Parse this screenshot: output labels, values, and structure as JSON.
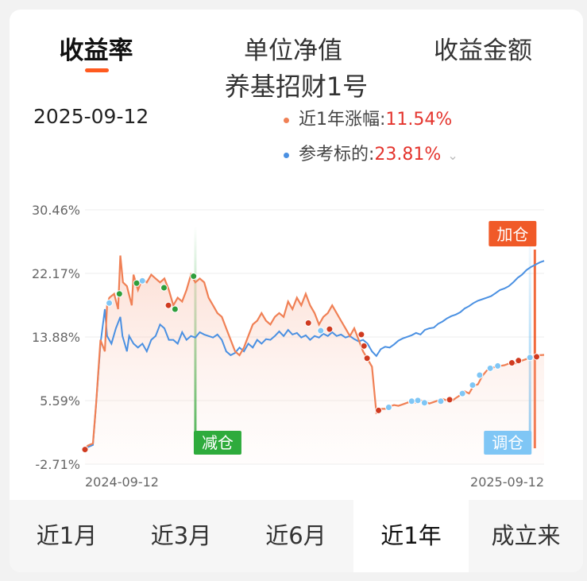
{
  "tabs": [
    "收益率",
    "单位净值",
    "收益金额"
  ],
  "active_tab": 0,
  "fund_name": "养基招财1号",
  "date": "2025-09-12",
  "legend": [
    {
      "label": "近1年涨幅:",
      "value": "11.54%",
      "color": "#f08055"
    },
    {
      "label": "参考标的:",
      "value": "23.81%",
      "color": "#4a90e2"
    }
  ],
  "periods": [
    "近1月",
    "近3月",
    "近6月",
    "近1年",
    "成立来"
  ],
  "active_period": 3,
  "chart_data": {
    "type": "line",
    "y_ticks": [
      "30.46%",
      "22.17%",
      "13.88%",
      "5.59%",
      "-2.71%"
    ],
    "ylim": [
      -2.71,
      30.46
    ],
    "x_ticks": [
      "2024-09-12",
      "2025-09-12"
    ],
    "series": [
      {
        "name": "近1年涨幅",
        "color": "#f08055",
        "points": [
          [
            0,
            -0.8
          ],
          [
            0.6,
            -0.3
          ],
          [
            1.8,
            0
          ],
          [
            2.5,
            5
          ],
          [
            3.5,
            13.5
          ],
          [
            4.5,
            12
          ],
          [
            5,
            18
          ],
          [
            5.5,
            19
          ],
          [
            6.6,
            19.5
          ],
          [
            7.5,
            17.5
          ],
          [
            8,
            24.5
          ],
          [
            8.6,
            21
          ],
          [
            9.5,
            20.5
          ],
          [
            10.6,
            18
          ],
          [
            11,
            22
          ],
          [
            12,
            20
          ],
          [
            13,
            21.5
          ],
          [
            14,
            21
          ],
          [
            15,
            22
          ],
          [
            16,
            21.5
          ],
          [
            17,
            21
          ],
          [
            18,
            21.5
          ],
          [
            19,
            20
          ],
          [
            20,
            18
          ],
          [
            21,
            19
          ],
          [
            22,
            18.5
          ],
          [
            23,
            20
          ],
          [
            24,
            22
          ],
          [
            25,
            21
          ],
          [
            26,
            21.5
          ],
          [
            27,
            21
          ],
          [
            28,
            19
          ],
          [
            29,
            18
          ],
          [
            30,
            17
          ],
          [
            31,
            16.5
          ],
          [
            32,
            15
          ],
          [
            33,
            13.5
          ],
          [
            34,
            12
          ],
          [
            35,
            11.5
          ],
          [
            36,
            12.5
          ],
          [
            37,
            14
          ],
          [
            38,
            15.5
          ],
          [
            39,
            16
          ],
          [
            40,
            17
          ],
          [
            41,
            16
          ],
          [
            42,
            15.5
          ],
          [
            43,
            16.5
          ],
          [
            44,
            17
          ],
          [
            45,
            16.5
          ],
          [
            46,
            18.5
          ],
          [
            47,
            17.5
          ],
          [
            48,
            19
          ],
          [
            49,
            18
          ],
          [
            50,
            19.5
          ],
          [
            51,
            18
          ],
          [
            52,
            17
          ],
          [
            53,
            15.5
          ],
          [
            54,
            16.5
          ],
          [
            55,
            17
          ],
          [
            56,
            18
          ],
          [
            57,
            17
          ],
          [
            58,
            16
          ],
          [
            59,
            15
          ],
          [
            60,
            14
          ],
          [
            61,
            15
          ],
          [
            62,
            13.5
          ],
          [
            63,
            12
          ],
          [
            64,
            11
          ],
          [
            65,
            10
          ],
          [
            66,
            4
          ],
          [
            67,
            4.5
          ],
          [
            68,
            4.5
          ],
          [
            69,
            4.8
          ],
          [
            70,
            5
          ],
          [
            71,
            4.9
          ],
          [
            72,
            5.1
          ],
          [
            73,
            5.3
          ],
          [
            74,
            5.5
          ],
          [
            75,
            5.3
          ],
          [
            76,
            5.6
          ],
          [
            77,
            5.5
          ],
          [
            78,
            5.2
          ],
          [
            79,
            5.4
          ],
          [
            80,
            5.6
          ],
          [
            81,
            5.8
          ],
          [
            82,
            5.6
          ],
          [
            83,
            5.5
          ],
          [
            84,
            5.9
          ],
          [
            85,
            6.3
          ],
          [
            86,
            6.8
          ],
          [
            87,
            6.5
          ],
          [
            88,
            7.5
          ],
          [
            89,
            7.7
          ],
          [
            90,
            8.8
          ],
          [
            91,
            9.5
          ],
          [
            92,
            9.8
          ],
          [
            93,
            10
          ],
          [
            94,
            10.1
          ],
          [
            95,
            10.2
          ],
          [
            96,
            10.4
          ],
          [
            97,
            10.3
          ],
          [
            98,
            10.6
          ],
          [
            99,
            10.8
          ],
          [
            100,
            11
          ],
          [
            101,
            11.3
          ],
          [
            102,
            11.4
          ],
          [
            103,
            11.5
          ],
          [
            104,
            11.54
          ]
        ]
      },
      {
        "name": "参考标的",
        "color": "#4a90e2",
        "points": [
          [
            0,
            -0.8
          ],
          [
            0.6,
            -0.5
          ],
          [
            1.8,
            -0.2
          ],
          [
            2.5,
            5
          ],
          [
            3.5,
            13
          ],
          [
            4.5,
            17.5
          ],
          [
            5,
            14
          ],
          [
            6,
            13
          ],
          [
            7,
            15
          ],
          [
            8,
            16.5
          ],
          [
            8.5,
            14
          ],
          [
            9,
            13
          ],
          [
            9.5,
            12
          ],
          [
            10,
            14
          ],
          [
            11,
            13
          ],
          [
            12,
            12.5
          ],
          [
            13,
            13
          ],
          [
            14,
            12
          ],
          [
            15,
            13.5
          ],
          [
            16,
            14
          ],
          [
            17,
            15.5
          ],
          [
            18,
            15
          ],
          [
            19,
            13.5
          ],
          [
            20,
            13.5
          ],
          [
            21,
            13
          ],
          [
            22,
            14.5
          ],
          [
            23,
            13.5
          ],
          [
            24,
            14
          ],
          [
            25,
            13.8
          ],
          [
            26,
            14.5
          ],
          [
            27,
            14.2
          ],
          [
            28,
            14
          ],
          [
            29,
            13.8
          ],
          [
            30,
            14.2
          ],
          [
            31,
            13.5
          ],
          [
            32,
            12
          ],
          [
            33,
            11.5
          ],
          [
            34,
            11.8
          ],
          [
            35,
            12.5
          ],
          [
            36,
            12
          ],
          [
            37,
            13
          ],
          [
            38,
            12.5
          ],
          [
            39,
            13.5
          ],
          [
            40,
            13
          ],
          [
            41,
            13.6
          ],
          [
            42,
            13.5
          ],
          [
            43,
            14
          ],
          [
            44,
            14.6
          ],
          [
            45,
            14
          ],
          [
            46,
            14.8
          ],
          [
            47,
            14.2
          ],
          [
            48,
            14.4
          ],
          [
            49,
            13.8
          ],
          [
            50,
            14.1
          ],
          [
            51,
            13.5
          ],
          [
            52,
            14
          ],
          [
            53,
            13.8
          ],
          [
            54,
            14.3
          ],
          [
            55,
            14
          ],
          [
            56,
            14.5
          ],
          [
            57,
            14
          ],
          [
            58,
            14.2
          ],
          [
            59,
            13.8
          ],
          [
            60,
            14
          ],
          [
            61,
            13.6
          ],
          [
            62,
            13.3
          ],
          [
            63,
            13.5
          ],
          [
            64,
            13
          ],
          [
            65,
            12
          ],
          [
            66,
            11.4
          ],
          [
            67,
            12.3
          ],
          [
            68,
            12.6
          ],
          [
            69,
            12.5
          ],
          [
            70,
            12.9
          ],
          [
            71,
            13.4
          ],
          [
            72,
            13.7
          ],
          [
            73,
            13.9
          ],
          [
            74,
            14.1
          ],
          [
            75,
            14.4
          ],
          [
            76,
            14.2
          ],
          [
            77,
            14.8
          ],
          [
            78,
            15
          ],
          [
            79,
            15.1
          ],
          [
            80,
            15.6
          ],
          [
            81,
            15.9
          ],
          [
            82,
            16.3
          ],
          [
            83,
            16.6
          ],
          [
            84,
            16.8
          ],
          [
            85,
            17.1
          ],
          [
            86,
            17.6
          ],
          [
            87,
            17.9
          ],
          [
            88,
            18.3
          ],
          [
            89,
            18.6
          ],
          [
            90,
            18.8
          ],
          [
            91,
            19
          ],
          [
            92,
            19.2
          ],
          [
            93,
            19.6
          ],
          [
            94,
            20
          ],
          [
            95,
            20.2
          ],
          [
            96,
            20.5
          ],
          [
            97,
            21
          ],
          [
            98,
            21.6
          ],
          [
            99,
            22
          ],
          [
            100,
            22.6
          ],
          [
            101,
            23
          ],
          [
            102,
            23.3
          ],
          [
            103,
            23.6
          ],
          [
            104,
            23.81
          ]
        ]
      }
    ],
    "markers": [
      {
        "type": "buy",
        "color": "#d03a1f",
        "x": 0,
        "y": -0.8
      },
      {
        "type": "sell",
        "color": "#2e9e3b",
        "x": 7.8,
        "y": 19.5
      },
      {
        "type": "adjust",
        "color": "#7fc6f5",
        "x": 5.5,
        "y": 18.3
      },
      {
        "type": "sell",
        "color": "#2e9e3b",
        "x": 11.7,
        "y": 20.9
      },
      {
        "type": "adjust",
        "color": "#7fc6f5",
        "x": 13,
        "y": 21.2
      },
      {
        "type": "sell",
        "color": "#2e9e3b",
        "x": 17.9,
        "y": 20.3
      },
      {
        "type": "buy",
        "color": "#d03a1f",
        "x": 18.9,
        "y": 18
      },
      {
        "type": "sell",
        "color": "#2e9e3b",
        "x": 20.4,
        "y": 17.5
      },
      {
        "type": "sell",
        "color": "#2e9e3b",
        "x": 24.6,
        "y": 21.8
      },
      {
        "type": "buy",
        "color": "#d03a1f",
        "x": 50.6,
        "y": 15.7
      },
      {
        "type": "adjust",
        "color": "#7fc6f5",
        "x": 53.4,
        "y": 14.7
      },
      {
        "type": "buy",
        "color": "#d03a1f",
        "x": 55.4,
        "y": 14.9
      },
      {
        "type": "buy",
        "color": "#d03a1f",
        "x": 62.6,
        "y": 14.2
      },
      {
        "type": "buy",
        "color": "#d03a1f",
        "x": 63.2,
        "y": 12.7
      },
      {
        "type": "buy",
        "color": "#d03a1f",
        "x": 63.9,
        "y": 11.1
      },
      {
        "type": "buy",
        "color": "#d03a1f",
        "x": 66.5,
        "y": 4.3
      },
      {
        "type": "adjust",
        "color": "#7fc6f5",
        "x": 68.8,
        "y": 4.7
      },
      {
        "type": "adjust",
        "color": "#7fc6f5",
        "x": 74,
        "y": 5.5
      },
      {
        "type": "adjust",
        "color": "#7fc6f5",
        "x": 75.4,
        "y": 5.6
      },
      {
        "type": "adjust",
        "color": "#7fc6f5",
        "x": 76.9,
        "y": 5.3
      },
      {
        "type": "adjust",
        "color": "#7fc6f5",
        "x": 80.6,
        "y": 5.5
      },
      {
        "type": "buy",
        "color": "#d03a1f",
        "x": 82.6,
        "y": 5.7
      },
      {
        "type": "adjust",
        "color": "#7fc6f5",
        "x": 85.5,
        "y": 6.5
      },
      {
        "type": "adjust",
        "color": "#7fc6f5",
        "x": 87.8,
        "y": 7.6
      },
      {
        "type": "adjust",
        "color": "#7fc6f5",
        "x": 89.4,
        "y": 8.9
      },
      {
        "type": "adjust",
        "color": "#7fc6f5",
        "x": 91.8,
        "y": 9.8
      },
      {
        "type": "adjust",
        "color": "#7fc6f5",
        "x": 93.5,
        "y": 10.1
      },
      {
        "type": "buy",
        "color": "#d03a1f",
        "x": 96.7,
        "y": 10.5
      },
      {
        "type": "buy",
        "color": "#d03a1f",
        "x": 98.2,
        "y": 10.8
      },
      {
        "type": "adjust",
        "color": "#7fc6f5",
        "x": 100.8,
        "y": 11.2
      },
      {
        "type": "buy",
        "color": "#d03a1f",
        "x": 102.3,
        "y": 11.3
      }
    ],
    "annotations": [
      {
        "label": "减仓",
        "color": "#2eab3c",
        "x": 25,
        "position": "bottom"
      },
      {
        "label": "调仓",
        "color": "#7fc6f5",
        "x": 100.8,
        "position": "bottom"
      },
      {
        "label": "加仓",
        "color": "#f05a28",
        "x": 101.9,
        "position": "top"
      }
    ],
    "x_range": [
      0,
      104
    ]
  }
}
